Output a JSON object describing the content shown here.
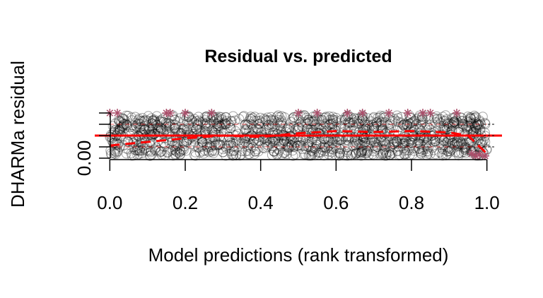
{
  "chart_data": {
    "type": "scatter",
    "title": "Residual vs. predicted",
    "xlabel": "Model predictions (rank transformed)",
    "ylabel": "DHARMa residual",
    "xlim": [
      -0.04,
      1.04
    ],
    "ylim": [
      0,
      1
    ],
    "x_ticks": [
      0.0,
      0.2,
      0.4,
      0.6,
      0.8,
      1.0
    ],
    "x_tick_labels": [
      "0.0",
      "0.2",
      "0.4",
      "0.6",
      "0.8",
      "1.0"
    ],
    "y_ticks": [
      0,
      0.25,
      0.5,
      0.75,
      1.0
    ],
    "y_tick_labels": [
      "0.00",
      "",
      "",
      "",
      ""
    ],
    "grid": false,
    "reference_line": {
      "y": 0.5,
      "color": "#ff0000",
      "style": "solid"
    },
    "quantile_lines": [
      {
        "quantile": 0.25,
        "color": "#ff0000",
        "style": "dashed",
        "x": [
          0.0,
          1.0
        ],
        "y": [
          0.25,
          0.25
        ]
      },
      {
        "quantile": 0.5,
        "color": "#ff0000",
        "style": "dashed",
        "x": [
          0.0,
          0.1,
          0.2,
          0.3,
          0.4,
          0.5,
          0.6,
          0.7,
          0.8,
          0.9,
          0.95,
          1.0
        ],
        "y": [
          0.28,
          0.36,
          0.44,
          0.5,
          0.47,
          0.55,
          0.6,
          0.58,
          0.6,
          0.57,
          0.5,
          0.1
        ]
      },
      {
        "quantile": 0.75,
        "color": "#ff0000",
        "style": "dashed",
        "x": [
          0.0,
          1.0
        ],
        "y": [
          0.75,
          0.75
        ]
      }
    ],
    "point_color": "#000000",
    "outlier_color": "#ab4f6b",
    "outlier_marker": "asterisk"
  }
}
